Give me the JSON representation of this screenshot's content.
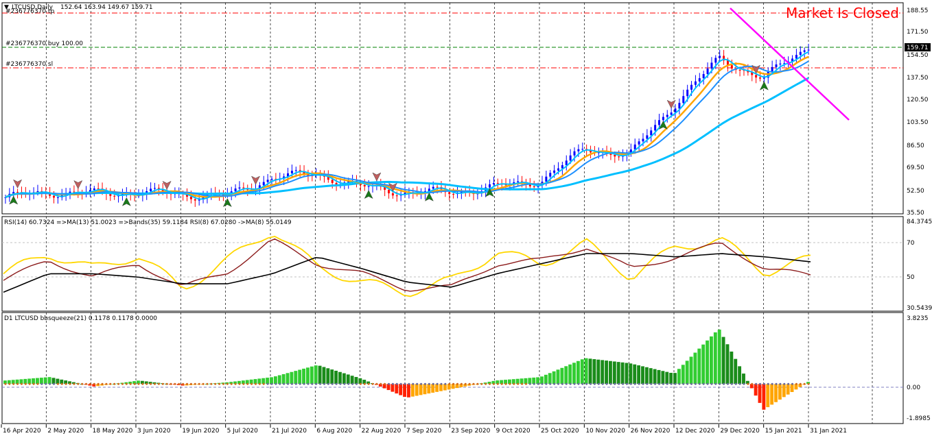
{
  "symbol_title": "LTCUSD,Daily",
  "ohlc": "152.64 163.94 149.67 159.71",
  "status_text": "Market Is Closed",
  "colors": {
    "bull": "#0000ff",
    "bear": "#ff0000",
    "ma_light": "#00bfff",
    "ma_mid": "#1e90ff",
    "ma_orange": "#ffa500",
    "trendline": "#ff00ff",
    "rsi": "#ffd700",
    "rsi_ma": "#8b1a1a",
    "bands": "#000000",
    "status": "#ff0000"
  },
  "trade_lines": {
    "tp": "#236776370 tp",
    "buy": "#236776370 buy 100.00",
    "sl": "#236776370 sl"
  },
  "main_axis": {
    "ticks": [
      "188.55",
      "171.50",
      "154.50",
      "137.50",
      "120.50",
      "103.50",
      "86.50",
      "69.50",
      "52.50",
      "35.50"
    ],
    "current_price": "159.71"
  },
  "rsi_panel": {
    "label": "RSI(14) 60.7324  =>MA(13) 51.0023  =>Bands(35) 59.1184  RSI(8) 67.0280  ->MA(8) 55.0149",
    "ticks": [
      "84.3745",
      "70",
      "50",
      "30.5439"
    ]
  },
  "squeeze_panel": {
    "label": "D1 LTCUSD bbsqueeze(21) 0.1178 0.1178 0.0000",
    "ticks": [
      "3.8235",
      "0.00",
      "-1.8985"
    ]
  },
  "time_axis": [
    "16 Apr 2020",
    "2 May 2020",
    "18 May 2020",
    "3 Jun 2020",
    "19 Jun 2020",
    "5 Jul 2020",
    "21 Jul 2020",
    "6 Aug 2020",
    "22 Aug 2020",
    "7 Sep 2020",
    "23 Sep 2020",
    "9 Oct 2020",
    "25 Oct 2020",
    "10 Nov 2020",
    "26 Nov 2020",
    "12 Dec 2020",
    "29 Dec 2020",
    "15 Jan 2021",
    "31 Jan 2021"
  ],
  "chart_data": [
    {
      "type": "candlestick",
      "title": "LTCUSD,Daily",
      "ylim": [
        35.5,
        188.55
      ],
      "x": [
        "16 Apr 2020",
        "2 May 2020",
        "18 May 2020",
        "3 Jun 2020",
        "19 Jun 2020",
        "5 Jul 2020",
        "21 Jul 2020",
        "6 Aug 2020",
        "22 Aug 2020",
        "7 Sep 2020",
        "23 Sep 2020",
        "9 Oct 2020",
        "25 Oct 2020",
        "10 Nov 2020",
        "26 Nov 2020",
        "12 Dec 2020",
        "29 Dec 2020",
        "15 Jan 2021",
        "31 Jan 2021"
      ],
      "close_anchors": [
        42,
        46,
        45,
        46,
        44,
        43,
        58,
        60,
        50,
        46,
        46,
        50,
        55,
        80,
        75,
        115,
        150,
        135,
        159.71
      ],
      "reference_lines": {
        "tp": 180,
        "buy": 159.71,
        "sl": 145
      }
    },
    {
      "type": "line",
      "title": "RSI(14)",
      "ylim": [
        30.5439,
        84.3745
      ],
      "series": [
        {
          "name": "RSI(14)",
          "values": [
            52,
            64,
            55,
            63,
            43,
            60,
            78,
            56,
            47,
            41,
            48,
            65,
            58,
            70,
            50,
            68,
            72,
            53,
            60.7324
          ]
        },
        {
          "name": "MA(13)",
          "values": [
            48,
            60,
            50,
            58,
            44,
            53,
            72,
            58,
            52,
            43,
            44,
            58,
            60,
            68,
            55,
            62,
            70,
            55,
            51.0023
          ]
        },
        {
          "name": "Bands(35)",
          "values": [
            41,
            52,
            52,
            50,
            46,
            46,
            52,
            62,
            55,
            47,
            44,
            52,
            58,
            64,
            64,
            62,
            64,
            62,
            59.1184
          ]
        }
      ]
    },
    {
      "type": "bar",
      "title": "bbsqueeze(21)",
      "ylim": [
        -1.8985,
        3.8235
      ],
      "categories": [
        "16 Apr 2020",
        "2 May 2020",
        "18 May 2020",
        "3 Jun 2020",
        "19 Jun 2020",
        "5 Jul 2020",
        "21 Jul 2020",
        "6 Aug 2020",
        "22 Aug 2020",
        "7 Sep 2020",
        "23 Sep 2020",
        "9 Oct 2020",
        "25 Oct 2020",
        "10 Nov 2020",
        "26 Nov 2020",
        "12 Dec 2020",
        "29 Dec 2020",
        "15 Jan 2021",
        "31 Jan 2021"
      ],
      "values": [
        0.2,
        0.4,
        -0.15,
        0.2,
        -0.1,
        0.1,
        0.4,
        1.1,
        0.3,
        -0.8,
        -0.3,
        0.2,
        0.4,
        1.5,
        1.2,
        0.6,
        3.2,
        -1.5,
        0.1178
      ]
    }
  ]
}
